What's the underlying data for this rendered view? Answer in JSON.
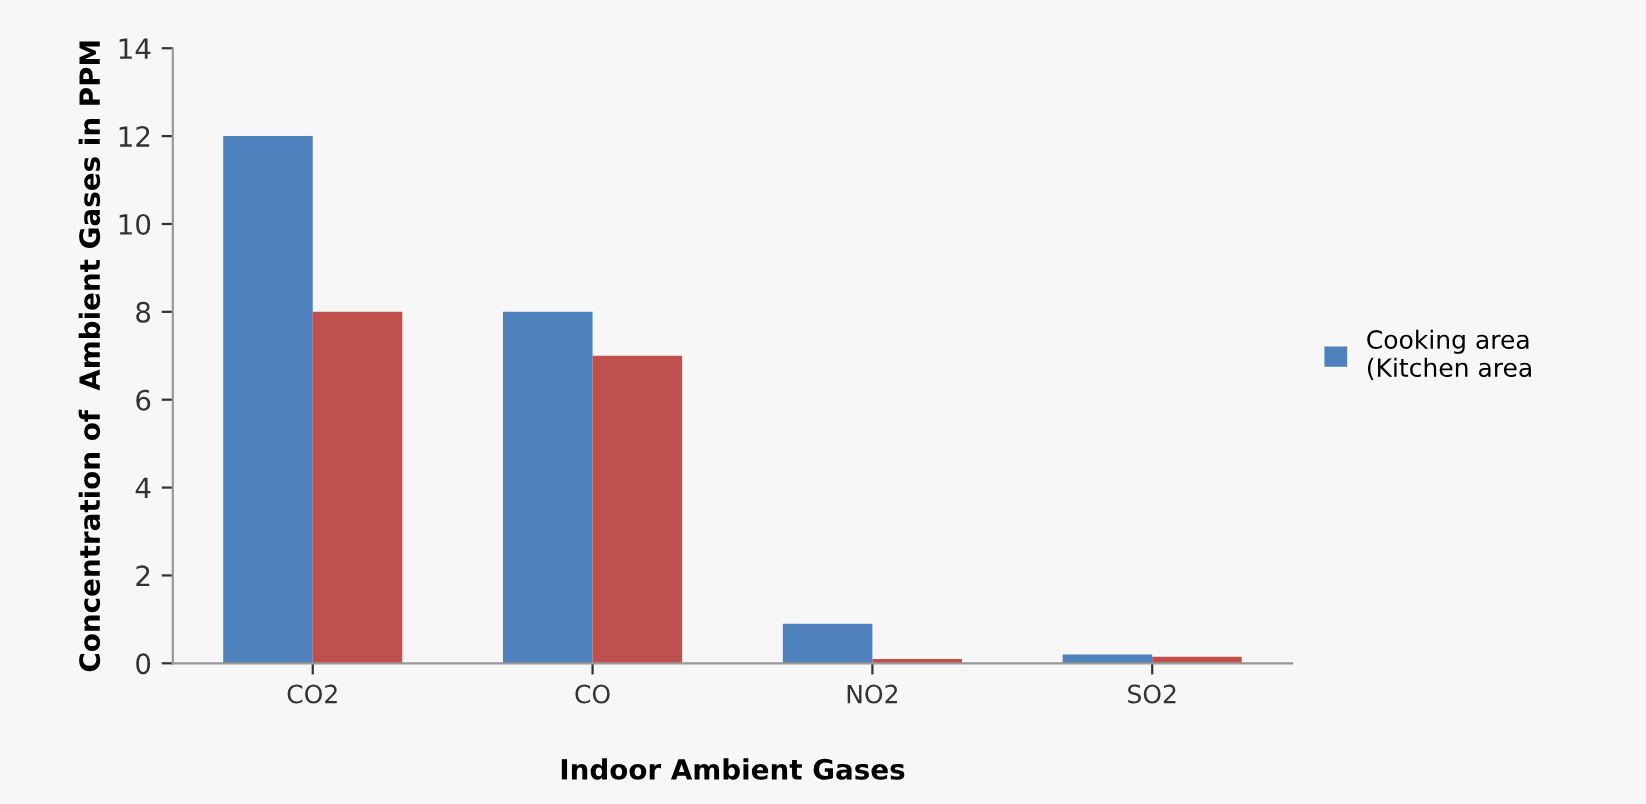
{
  "chart_data": {
    "type": "bar",
    "xlabel": "Indoor Ambient Gases",
    "ylabel": "Concentration of  Ambient Gases in PPM",
    "categories": [
      "CO2",
      "CO",
      "NO2",
      "SO2"
    ],
    "series": [
      {
        "name": "Cooking area (Kitchen area",
        "color": "#4f81bd",
        "values": [
          12,
          8,
          0.9,
          0.2
        ]
      },
      {
        "color": "#c0504d",
        "values": [
          8,
          7,
          0.1,
          0.15
        ]
      }
    ],
    "ylim": [
      0,
      14
    ],
    "yticks": [
      0,
      2,
      4,
      6,
      8,
      10,
      12,
      14
    ],
    "grid": false,
    "legend": "right"
  }
}
